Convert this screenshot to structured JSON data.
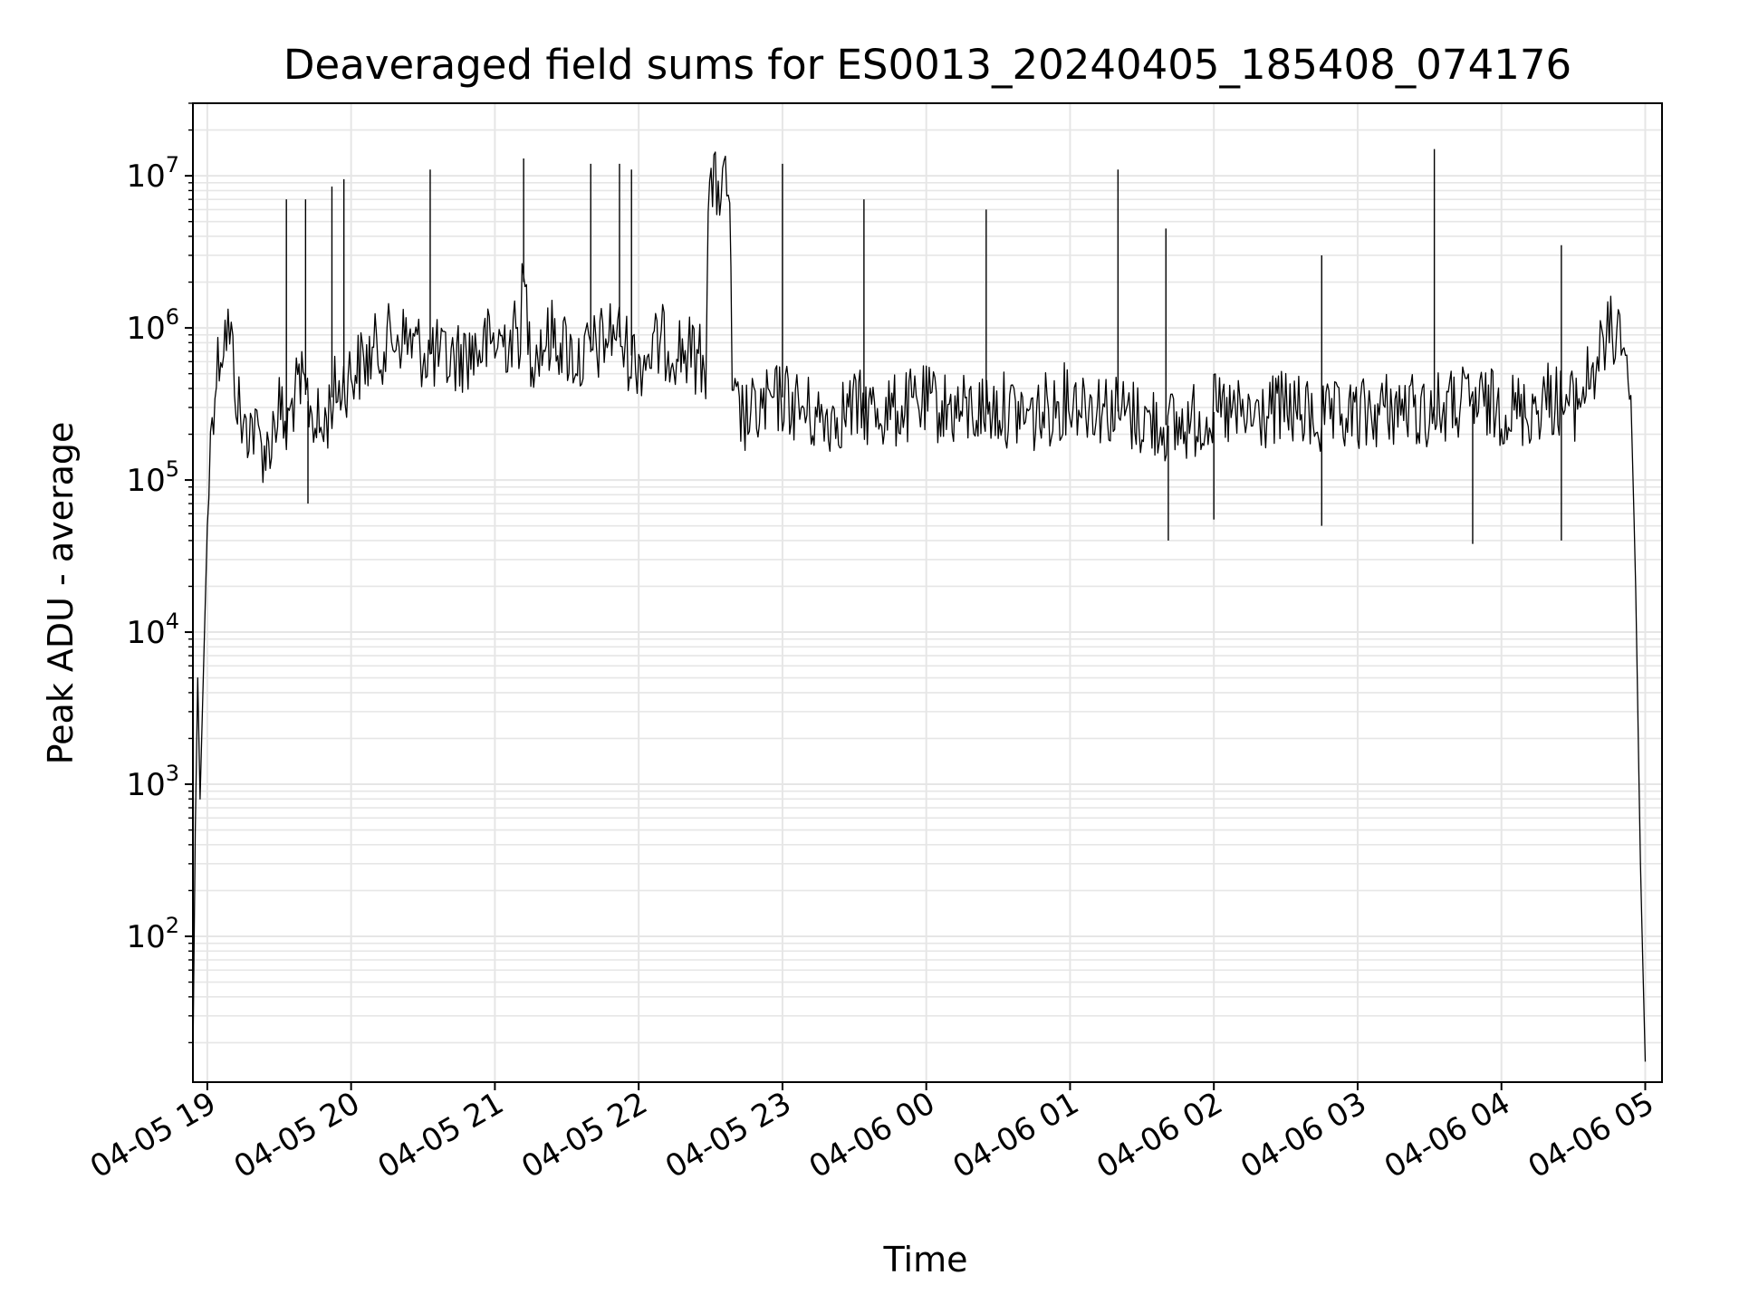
{
  "chart_data": {
    "type": "line",
    "title": "Deaveraged field sums for ES0013_20240405_185408_074176",
    "xlabel": "Time",
    "ylabel": "Peak ADU - average",
    "yscale": "log",
    "ylim": [
      11,
      30000000
    ],
    "xlim": [
      "2024-04-05 18:54",
      "2024-04-06 05:07"
    ],
    "grid": true,
    "legend": "none",
    "line_color": "#000000",
    "grid_color": "#e6e6e6",
    "x_ticks": [
      {
        "label": "04-05 19",
        "t": "2024-04-05 19:00"
      },
      {
        "label": "04-05 20",
        "t": "2024-04-05 20:00"
      },
      {
        "label": "04-05 21",
        "t": "2024-04-05 21:00"
      },
      {
        "label": "04-05 22",
        "t": "2024-04-05 22:00"
      },
      {
        "label": "04-05 23",
        "t": "2024-04-05 23:00"
      },
      {
        "label": "04-06 00",
        "t": "2024-04-06 00:00"
      },
      {
        "label": "04-06 01",
        "t": "2024-04-06 01:00"
      },
      {
        "label": "04-06 02",
        "t": "2024-04-06 02:00"
      },
      {
        "label": "04-06 03",
        "t": "2024-04-06 03:00"
      },
      {
        "label": "04-06 04",
        "t": "2024-04-06 04:00"
      },
      {
        "label": "04-06 05",
        "t": "2024-04-06 05:00"
      }
    ],
    "y_ticks": [
      {
        "base": "10",
        "exp": "2",
        "value": 100
      },
      {
        "base": "10",
        "exp": "3",
        "value": 1000
      },
      {
        "base": "10",
        "exp": "4",
        "value": 10000
      },
      {
        "base": "10",
        "exp": "5",
        "value": 100000
      },
      {
        "base": "10",
        "exp": "6",
        "value": 1000000
      },
      {
        "base": "10",
        "exp": "7",
        "value": 10000000
      }
    ],
    "series": [
      {
        "x": [
          "2024-04-05 18:54",
          "2024-04-05 18:55",
          "2024-04-05 18:56",
          "2024-04-05 18:57",
          "2024-04-05 19:00",
          "2024-04-05 19:02",
          "2024-04-05 19:05",
          "2024-04-05 19:08",
          "2024-04-05 19:10",
          "2024-04-05 19:12",
          "2024-04-05 19:15",
          "2024-04-05 19:18",
          "2024-04-05 19:20",
          "2024-04-05 19:22",
          "2024-04-05 19:25",
          "2024-04-05 19:28",
          "2024-04-05 19:30",
          "2024-04-05 19:33",
          "2024-04-05 19:36",
          "2024-04-05 19:40",
          "2024-04-05 19:43",
          "2024-04-05 19:45",
          "2024-04-05 19:48",
          "2024-04-05 19:52",
          "2024-04-05 19:55",
          "2024-04-05 20:00",
          "2024-04-05 20:10",
          "2024-04-05 20:15",
          "2024-04-05 20:20",
          "2024-04-05 20:30",
          "2024-04-05 20:40",
          "2024-04-05 20:50",
          "2024-04-05 21:00",
          "2024-04-05 21:10",
          "2024-04-05 21:12",
          "2024-04-05 21:15",
          "2024-04-05 21:25",
          "2024-04-05 21:35",
          "2024-04-05 21:45",
          "2024-04-05 21:50",
          "2024-04-05 21:55",
          "2024-04-05 22:00",
          "2024-04-05 22:10",
          "2024-04-05 22:20",
          "2024-04-05 22:28",
          "2024-04-05 22:29",
          "2024-04-05 22:35",
          "2024-04-05 22:38",
          "2024-04-05 22:39",
          "2024-04-05 22:45",
          "2024-04-05 23:00",
          "2024-04-05 23:15",
          "2024-04-05 23:30",
          "2024-04-05 23:45",
          "2024-04-06 00:00",
          "2024-04-06 00:15",
          "2024-04-06 00:30",
          "2024-04-06 00:45",
          "2024-04-06 01:00",
          "2024-04-06 01:15",
          "2024-04-06 01:30",
          "2024-04-06 01:45",
          "2024-04-06 02:00",
          "2024-04-06 02:15",
          "2024-04-06 02:30",
          "2024-04-06 02:45",
          "2024-04-06 03:00",
          "2024-04-06 03:15",
          "2024-04-06 03:30",
          "2024-04-06 03:45",
          "2024-04-06 04:00",
          "2024-04-06 04:10",
          "2024-04-06 04:20",
          "2024-04-06 04:30",
          "2024-04-06 04:40",
          "2024-04-06 04:45",
          "2024-04-06 04:50",
          "2024-04-06 04:54",
          "2024-04-06 04:56",
          "2024-04-06 04:58",
          "2024-04-06 05:00"
        ],
        "y": [
          15,
          500,
          5000,
          800,
          50000,
          300000,
          700000,
          1000000,
          800000,
          400000,
          200000,
          250000,
          200000,
          180000,
          150000,
          250000,
          300000,
          200000,
          350000,
          400000,
          300000,
          250000,
          200000,
          350000,
          400000,
          500000,
          700000,
          800000,
          900000,
          700000,
          600000,
          700000,
          800000,
          900000,
          2000000,
          700000,
          900000,
          600000,
          800000,
          1000000,
          700000,
          600000,
          800000,
          700000,
          600000,
          8000000,
          8500000,
          8000000,
          300000,
          250000,
          350000,
          250000,
          300000,
          280000,
          320000,
          280000,
          300000,
          260000,
          350000,
          300000,
          250000,
          220000,
          280000,
          250000,
          300000,
          240000,
          260000,
          300000,
          280000,
          320000,
          300000,
          280000,
          350000,
          300000,
          600000,
          900000,
          1000000,
          400000,
          20000,
          300,
          15
        ],
        "spikes": [
          {
            "t": "2024-04-05 19:33",
            "y": 7000000
          },
          {
            "t": "2024-04-05 19:41",
            "y": 7000000
          },
          {
            "t": "2024-04-05 19:52",
            "y": 8500000
          },
          {
            "t": "2024-04-05 19:57",
            "y": 9500000
          },
          {
            "t": "2024-04-05 20:33",
            "y": 11000000
          },
          {
            "t": "2024-04-05 21:12",
            "y": 13000000
          },
          {
            "t": "2024-04-05 21:40",
            "y": 12000000
          },
          {
            "t": "2024-04-05 21:52",
            "y": 12000000
          },
          {
            "t": "2024-04-05 21:57",
            "y": 11000000
          },
          {
            "t": "2024-04-05 23:00",
            "y": 12000000
          },
          {
            "t": "2024-04-05 23:34",
            "y": 7000000
          },
          {
            "t": "2024-04-06 00:25",
            "y": 6000000
          },
          {
            "t": "2024-04-06 01:20",
            "y": 11000000
          },
          {
            "t": "2024-04-06 01:40",
            "y": 4500000
          },
          {
            "t": "2024-04-06 02:45",
            "y": 3000000
          },
          {
            "t": "2024-04-06 03:32",
            "y": 15000000
          },
          {
            "t": "2024-04-06 04:25",
            "y": 3500000
          }
        ],
        "dips": [
          {
            "t": "2024-04-05 19:42",
            "y": 70000
          },
          {
            "t": "2024-04-06 01:41",
            "y": 40000
          },
          {
            "t": "2024-04-06 02:00",
            "y": 55000
          },
          {
            "t": "2024-04-06 02:45",
            "y": 50000
          },
          {
            "t": "2024-04-06 03:48",
            "y": 38000
          },
          {
            "t": "2024-04-06 04:25",
            "y": 40000
          }
        ]
      }
    ]
  }
}
